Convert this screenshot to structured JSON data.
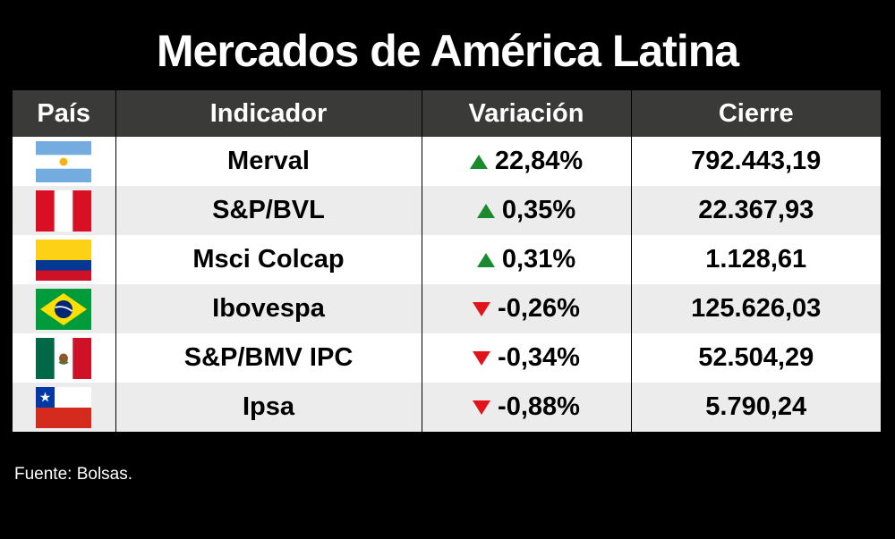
{
  "title": "Mercados de América Latina",
  "headers": [
    "País",
    "Indicador",
    "Variación",
    "Cierre"
  ],
  "colors": {
    "up": "#1a8a2e",
    "down": "#e0141a",
    "header_bg": "#3a3a38"
  },
  "rows": [
    {
      "flag_icon": "argentina-flag-icon",
      "indicator": "Merval",
      "direction": "up",
      "variation": "22,84%",
      "close": "792.443,19"
    },
    {
      "flag_icon": "peru-flag-icon",
      "indicator": "S&P/BVL",
      "direction": "up",
      "variation": "0,35%",
      "close": "22.367,93"
    },
    {
      "flag_icon": "colombia-flag-icon",
      "indicator": "Msci Colcap",
      "direction": "up",
      "variation": "0,31%",
      "close": "1.128,61"
    },
    {
      "flag_icon": "brazil-flag-icon",
      "indicator": "Ibovespa",
      "direction": "down",
      "variation": "-0,26%",
      "close": "125.626,03"
    },
    {
      "flag_icon": "mexico-flag-icon",
      "indicator": "S&P/BMV IPC",
      "direction": "down",
      "variation": "-0,34%",
      "close": "52.504,29"
    },
    {
      "flag_icon": "chile-flag-icon",
      "indicator": "Ipsa",
      "direction": "down",
      "variation": "-0,88%",
      "close": "5.790,24"
    }
  ],
  "chart_data": {
    "type": "table",
    "title": "Mercados de América Latina",
    "columns": [
      "País",
      "Indicador",
      "Variación",
      "Cierre"
    ],
    "rows": [
      [
        "Argentina",
        "Merval",
        "22,84%",
        "792.443,19"
      ],
      [
        "Perú",
        "S&P/BVL",
        "0,35%",
        "22.367,93"
      ],
      [
        "Colombia",
        "Msci Colcap",
        "0,31%",
        "1.128,61"
      ],
      [
        "Brasil",
        "Ibovespa",
        "-0,26%",
        "125.626,03"
      ],
      [
        "México",
        "S&P/BMV IPC",
        "-0,34%",
        "52.504,29"
      ],
      [
        "Chile",
        "Ipsa",
        "-0,88%",
        "5.790,24"
      ]
    ]
  },
  "source": "Fuente: Bolsas."
}
